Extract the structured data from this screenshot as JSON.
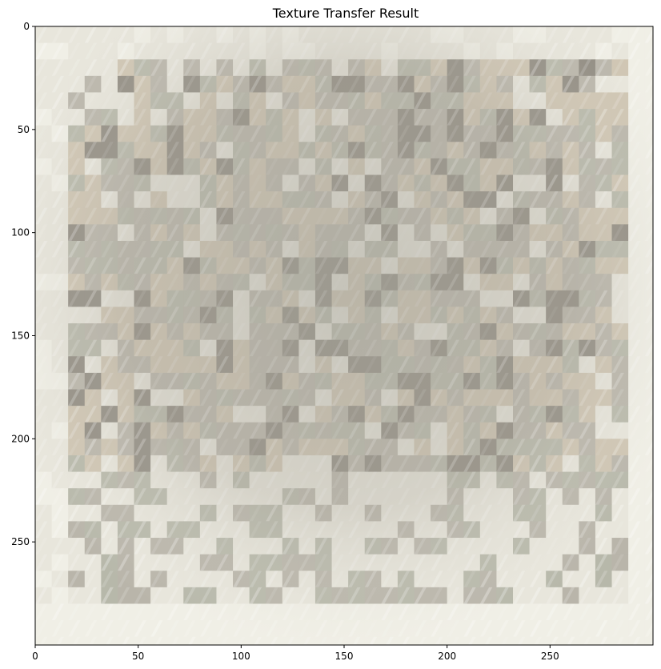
{
  "figure": {
    "title": "Texture Transfer Result"
  },
  "image": {
    "description_kind": "texture-transfer-mosaic",
    "palette": {
      "base": "#b9b5aa",
      "light": "#e8e6dc",
      "cream": "#f0efe6",
      "warm": "#cfc5b2",
      "dark": "#8f8a80",
      "greenish": "#b7b8aa"
    }
  },
  "axes": {
    "x": {
      "range": [
        0,
        300
      ],
      "ticks": [
        0,
        50,
        100,
        150,
        200,
        250
      ],
      "tick_labels": [
        "0",
        "50",
        "100",
        "150",
        "200",
        "250"
      ]
    },
    "y": {
      "range": [
        0,
        300
      ],
      "ticks": [
        0,
        50,
        100,
        150,
        200,
        250
      ],
      "tick_labels": [
        "0",
        "50",
        "100",
        "150",
        "200",
        "250"
      ]
    }
  }
}
